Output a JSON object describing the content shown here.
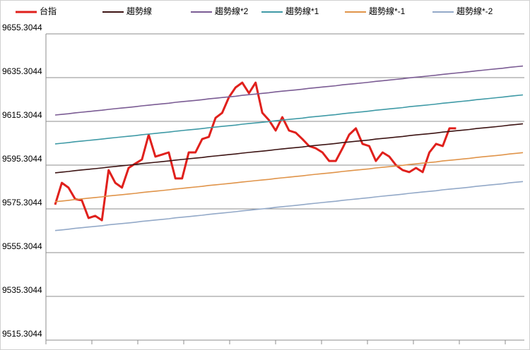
{
  "chart_data": {
    "type": "line",
    "categories": [
      null,
      null,
      null,
      null,
      null,
      null,
      null,
      null,
      null,
      null,
      null,
      null,
      null,
      null,
      null,
      null,
      null,
      null,
      null,
      null,
      null,
      null,
      null,
      null,
      null,
      null,
      null,
      null,
      null,
      null,
      null,
      null,
      null,
      null,
      null,
      null,
      null,
      null,
      null,
      null,
      null,
      null,
      null,
      null,
      null,
      null,
      null,
      null,
      null,
      null,
      null,
      null,
      null,
      null,
      null,
      null,
      null,
      null,
      null,
      null,
      null,
      null,
      null,
      null,
      null,
      null,
      null,
      null,
      null,
      null,
      null
    ],
    "ylim": [
      9515.3044,
      9655.3044
    ],
    "yticks": [
      9515.3044,
      9535.3044,
      9555.3044,
      9575.3044,
      9595.3044,
      9615.3044,
      9635.3044,
      9655.3044
    ],
    "grid": true,
    "legend": "top",
    "series": [
      {
        "name": "台指",
        "color": "#e0201c",
        "values": [
          9577.2,
          9587.2,
          9585.0,
          9579.8,
          9579.2,
          9571.1,
          9572.1,
          9570.1,
          9593.0,
          9587.2,
          9585.0,
          9594.0,
          9596.0,
          9597.9,
          9609.2,
          9599.2,
          9600.1,
          9601.1,
          9589.2,
          9589.2,
          9601.1,
          9601.1,
          9607.2,
          9608.2,
          9616.9,
          9619.2,
          9626.3,
          9630.8,
          9633.0,
          9628.2,
          9633.0,
          9619.2,
          9615.9,
          9611.1,
          9617.2,
          9611.1,
          9610.1,
          9607.2,
          9604.0,
          9603.0,
          9601.1,
          9597.2,
          9597.2,
          9603.0,
          9609.2,
          9612.1,
          9605.0,
          9604.0,
          9597.2,
          9601.1,
          9599.2,
          9595.3,
          9593.0,
          9592.1,
          9594.0,
          9592.1,
          9601.1,
          9605.0,
          9604.0,
          9612.1,
          9612.1,
          null,
          null,
          null,
          null,
          null,
          null,
          null,
          null,
          null,
          null
        ]
      },
      {
        "name": "趨勢線",
        "color": "#3d1414",
        "values": [
          9591.8,
          9592.1,
          9592.4,
          9592.8,
          9593.1,
          9593.4,
          9593.7,
          9594.0,
          9594.4,
          9594.7,
          9595.0,
          9595.3,
          9595.6,
          9596.0,
          9596.3,
          9596.6,
          9596.9,
          9597.2,
          9597.6,
          9597.9,
          9598.2,
          9598.5,
          9598.8,
          9599.2,
          9599.5,
          9599.8,
          9600.1,
          9600.4,
          9600.8,
          9601.1,
          9601.4,
          9601.7,
          9602.0,
          9602.4,
          9602.7,
          9603.0,
          9603.3,
          9603.6,
          9604.0,
          9604.3,
          9604.6,
          9604.9,
          9605.2,
          9605.6,
          9605.9,
          9606.2,
          9606.5,
          9606.8,
          9607.2,
          9607.5,
          9607.8,
          9608.1,
          9608.4,
          9608.8,
          9609.1,
          9609.4,
          9609.7,
          9610.0,
          9610.4,
          9610.7,
          9611.0,
          9611.3,
          9611.6,
          9612.0,
          9612.3,
          9612.6,
          9612.9,
          9613.2,
          9613.6,
          9613.9,
          9614.2
        ]
      },
      {
        "name": "趨勢線*2",
        "color": "#7b5c94",
        "values": [
          9618.2,
          9618.5,
          9618.8,
          9619.2,
          9619.5,
          9619.8,
          9620.1,
          9620.4,
          9620.8,
          9621.1,
          9621.4,
          9621.7,
          9622.0,
          9622.4,
          9622.7,
          9623.0,
          9623.3,
          9623.6,
          9624.0,
          9624.3,
          9624.6,
          9624.9,
          9625.2,
          9625.6,
          9625.9,
          9626.2,
          9626.5,
          9626.8,
          9627.2,
          9627.5,
          9627.8,
          9628.1,
          9628.4,
          9628.8,
          9629.1,
          9629.4,
          9629.7,
          9630.0,
          9630.4,
          9630.7,
          9631.0,
          9631.3,
          9631.6,
          9632.0,
          9632.3,
          9632.6,
          9632.9,
          9633.2,
          9633.6,
          9633.9,
          9634.2,
          9634.5,
          9634.8,
          9635.2,
          9635.5,
          9635.8,
          9636.1,
          9636.4,
          9636.8,
          9637.1,
          9637.4,
          9637.7,
          9638.0,
          9638.4,
          9638.7,
          9639.0,
          9639.3,
          9639.6,
          9640.0,
          9640.3,
          9640.6
        ]
      },
      {
        "name": "趨勢線*1",
        "color": "#3f9aa6",
        "values": [
          9605.0,
          9605.3,
          9605.6,
          9606.0,
          9606.3,
          9606.6,
          9606.9,
          9607.2,
          9607.6,
          9607.9,
          9608.2,
          9608.5,
          9608.8,
          9609.2,
          9609.5,
          9609.8,
          9610.1,
          9610.4,
          9610.8,
          9611.1,
          9611.4,
          9611.7,
          9612.0,
          9612.4,
          9612.7,
          9613.0,
          9613.3,
          9613.6,
          9614.0,
          9614.3,
          9614.6,
          9614.9,
          9615.2,
          9615.6,
          9615.9,
          9616.2,
          9616.5,
          9616.8,
          9617.2,
          9617.5,
          9617.8,
          9618.1,
          9618.4,
          9618.8,
          9619.1,
          9619.4,
          9619.7,
          9620.0,
          9620.4,
          9620.7,
          9621.0,
          9621.3,
          9621.6,
          9622.0,
          9622.3,
          9622.6,
          9622.9,
          9623.2,
          9623.6,
          9623.9,
          9624.2,
          9624.5,
          9624.8,
          9625.2,
          9625.5,
          9625.8,
          9626.1,
          9626.4,
          9626.8,
          9627.1,
          9627.4
        ]
      },
      {
        "name": "趨勢線*-1",
        "color": "#e0944a",
        "values": [
          9578.6,
          9578.9,
          9579.2,
          9579.6,
          9579.9,
          9580.2,
          9580.5,
          9580.8,
          9581.2,
          9581.5,
          9581.8,
          9582.1,
          9582.4,
          9582.8,
          9583.1,
          9583.4,
          9583.7,
          9584.0,
          9584.4,
          9584.7,
          9585.0,
          9585.3,
          9585.6,
          9586.0,
          9586.3,
          9586.6,
          9586.9,
          9587.2,
          9587.6,
          9587.9,
          9588.2,
          9588.5,
          9588.8,
          9589.2,
          9589.5,
          9589.8,
          9590.1,
          9590.4,
          9590.8,
          9591.1,
          9591.4,
          9591.7,
          9592.0,
          9592.4,
          9592.7,
          9593.0,
          9593.3,
          9593.6,
          9594.0,
          9594.3,
          9594.6,
          9594.9,
          9595.2,
          9595.6,
          9595.9,
          9596.2,
          9596.5,
          9596.8,
          9597.2,
          9597.5,
          9597.8,
          9598.1,
          9598.4,
          9598.8,
          9599.1,
          9599.4,
          9599.7,
          9600.0,
          9600.4,
          9600.7,
          9601.0
        ]
      },
      {
        "name": "趨勢線*-2",
        "color": "#93a9c8",
        "values": [
          9565.4,
          9565.7,
          9566.0,
          9566.4,
          9566.7,
          9567.0,
          9567.3,
          9567.6,
          9568.0,
          9568.3,
          9568.6,
          9568.9,
          9569.2,
          9569.6,
          9569.9,
          9570.2,
          9570.5,
          9570.8,
          9571.2,
          9571.5,
          9571.8,
          9572.1,
          9572.4,
          9572.8,
          9573.1,
          9573.4,
          9573.7,
          9574.0,
          9574.4,
          9574.7,
          9575.0,
          9575.3,
          9575.6,
          9576.0,
          9576.3,
          9576.6,
          9576.9,
          9577.2,
          9577.6,
          9577.9,
          9578.2,
          9578.5,
          9578.8,
          9579.2,
          9579.5,
          9579.8,
          9580.1,
          9580.4,
          9580.8,
          9581.1,
          9581.4,
          9581.7,
          9582.0,
          9582.4,
          9582.7,
          9583.0,
          9583.3,
          9583.6,
          9584.0,
          9584.3,
          9584.6,
          9584.9,
          9585.2,
          9585.6,
          9585.9,
          9586.2,
          9586.5,
          9586.8,
          9587.2,
          9587.5,
          9587.8
        ]
      }
    ]
  }
}
